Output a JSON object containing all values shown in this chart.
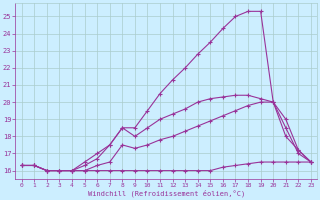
{
  "background_color": "#cceeff",
  "grid_color": "#aacccc",
  "line_color": "#993399",
  "marker": "+",
  "xlabel": "Windchill (Refroidissement éolien,°C)",
  "ylim": [
    15.5,
    25.8
  ],
  "xlim": [
    -0.5,
    23.5
  ],
  "yticks": [
    16,
    17,
    18,
    19,
    20,
    21,
    22,
    23,
    24,
    25
  ],
  "xticks": [
    0,
    1,
    2,
    3,
    4,
    5,
    6,
    7,
    8,
    9,
    10,
    11,
    12,
    13,
    14,
    15,
    16,
    17,
    18,
    19,
    20,
    21,
    22,
    23
  ],
  "series": [
    {
      "x": [
        0,
        1,
        2,
        3,
        4,
        5,
        6,
        7,
        8,
        9,
        10,
        11,
        12,
        13,
        14,
        15,
        16,
        17,
        18,
        19,
        20,
        21,
        22,
        23
      ],
      "y": [
        16.3,
        16.3,
        16.0,
        16.0,
        16.0,
        16.0,
        16.0,
        16.0,
        16.0,
        16.0,
        16.0,
        16.0,
        16.0,
        16.0,
        16.0,
        16.0,
        16.2,
        16.3,
        16.4,
        16.5,
        16.5,
        16.5,
        16.5,
        16.5
      ]
    },
    {
      "x": [
        0,
        1,
        2,
        3,
        4,
        5,
        6,
        7,
        8,
        9,
        10,
        11,
        12,
        13,
        14,
        15,
        16,
        17,
        18,
        19,
        20,
        21,
        22,
        23
      ],
      "y": [
        16.3,
        16.3,
        16.0,
        16.0,
        16.0,
        16.0,
        16.3,
        16.5,
        17.5,
        17.3,
        17.5,
        17.8,
        18.0,
        18.3,
        18.6,
        18.9,
        19.2,
        19.5,
        19.8,
        20.0,
        20.0,
        19.0,
        17.2,
        16.5
      ]
    },
    {
      "x": [
        0,
        1,
        2,
        3,
        4,
        5,
        6,
        7,
        8,
        9,
        10,
        11,
        12,
        13,
        14,
        15,
        16,
        17,
        18,
        19,
        20,
        21,
        22,
        23
      ],
      "y": [
        16.3,
        16.3,
        16.0,
        16.0,
        16.0,
        16.3,
        16.7,
        17.5,
        18.5,
        18.0,
        18.5,
        19.0,
        19.3,
        19.6,
        20.0,
        20.2,
        20.3,
        20.4,
        20.4,
        20.2,
        20.0,
        18.5,
        17.0,
        16.5
      ]
    },
    {
      "x": [
        0,
        1,
        2,
        3,
        4,
        5,
        6,
        7,
        8,
        9,
        10,
        11,
        12,
        13,
        14,
        15,
        16,
        17,
        18,
        19,
        20,
        21,
        22,
        23
      ],
      "y": [
        16.3,
        16.3,
        16.0,
        16.0,
        16.0,
        16.5,
        17.0,
        17.5,
        18.5,
        18.5,
        19.5,
        20.5,
        21.3,
        22.0,
        22.8,
        23.5,
        24.3,
        25.0,
        25.3,
        25.3,
        20.0,
        18.0,
        17.2,
        16.5
      ]
    }
  ]
}
